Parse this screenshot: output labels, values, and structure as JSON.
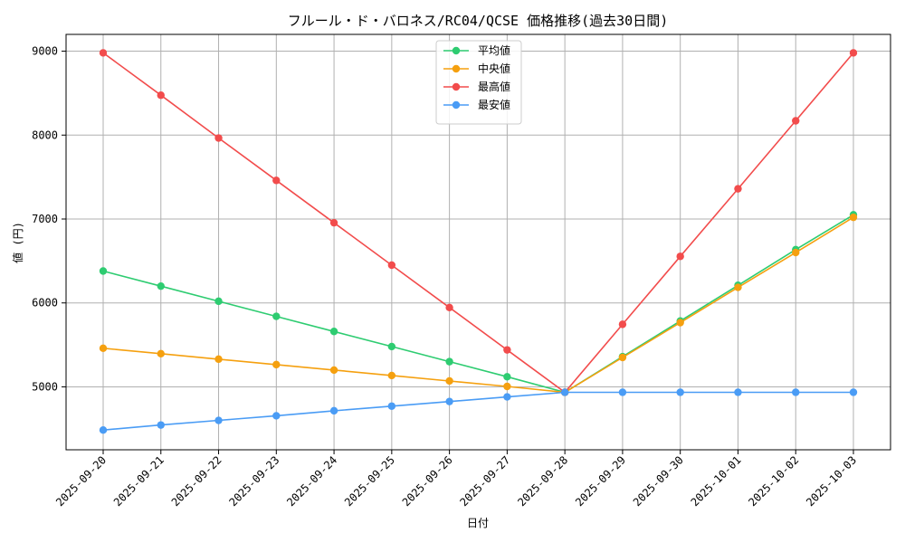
{
  "chart_data": {
    "type": "line",
    "title": "フルール・ド・バロネス/RC04/QCSE 価格推移(過去30日間)",
    "xlabel": "日付",
    "ylabel": "値 (円)",
    "categories": [
      "2025-09-20",
      "2025-09-21",
      "2025-09-22",
      "2025-09-23",
      "2025-09-24",
      "2025-09-25",
      "2025-09-26",
      "2025-09-27",
      "2025-09-28",
      "2025-09-29",
      "2025-09-30",
      "2025-10-01",
      "2025-10-02",
      "2025-10-03"
    ],
    "ylim": [
      4250,
      9200
    ],
    "yticks": [
      5000,
      6000,
      7000,
      8000,
      9000
    ],
    "grid": true,
    "legend_position": "top-center",
    "series": [
      {
        "name": "平均値",
        "color": "#2ecc71",
        "values": [
          6380,
          6200,
          6020,
          5840,
          5660,
          5480,
          5300,
          5120,
          4935,
          5360,
          5785,
          6210,
          6635,
          7050
        ]
      },
      {
        "name": "中央値",
        "color": "#f5a00f",
        "values": [
          5460,
          5395,
          5330,
          5265,
          5200,
          5135,
          5070,
          5005,
          4935,
          5350,
          5765,
          6185,
          6600,
          7020
        ]
      },
      {
        "name": "最高値",
        "color": "#f24c4c",
        "values": [
          8980,
          8475,
          7965,
          7460,
          6955,
          6450,
          5945,
          5440,
          4935,
          5745,
          6555,
          7360,
          8170,
          8980
        ]
      },
      {
        "name": "最安値",
        "color": "#4a9cf5",
        "values": [
          4485,
          4545,
          4600,
          4655,
          4715,
          4770,
          4825,
          4880,
          4935,
          4935,
          4935,
          4935,
          4935,
          4935
        ]
      }
    ]
  }
}
